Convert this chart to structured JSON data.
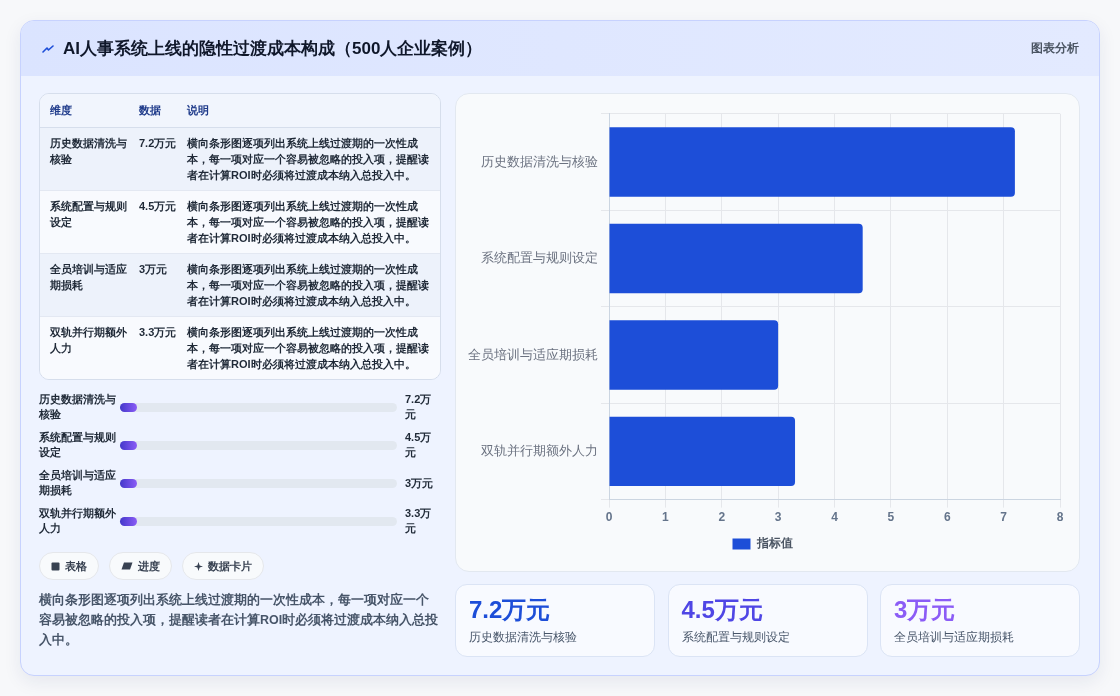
{
  "chart_data": {
    "type": "bar",
    "orientation": "horizontal",
    "title": "AI人事系统上线的隐性过渡成本构成（500人企业案例）",
    "categories": [
      "历史数据清洗与核验",
      "系统配置与规则设定",
      "全员培训与适应期损耗",
      "双轨并行期额外人力"
    ],
    "series": [
      {
        "name": "指标值",
        "color": "#1d4ed8",
        "values": [
          7.2,
          4.5,
          3,
          3.3
        ]
      }
    ],
    "xlim": [
      0,
      8
    ],
    "xticks": [
      0,
      1,
      2,
      3,
      4,
      5,
      6,
      7,
      8
    ],
    "grid": true,
    "legend": "bottom",
    "annotations": [
      "图表分析",
      "维度",
      "数据",
      "说明",
      "表格",
      "进度",
      "数据卡片",
      "横向条形图逐项列出系统上线过渡期的一次性成本，每一项对应一个容易被忽略的投入项，提醒读者在计算ROI时必须将过渡成本纳入总投入中。",
      "7.2万元",
      "4.5万元",
      "3万元",
      "3.3万元"
    ]
  }
}
